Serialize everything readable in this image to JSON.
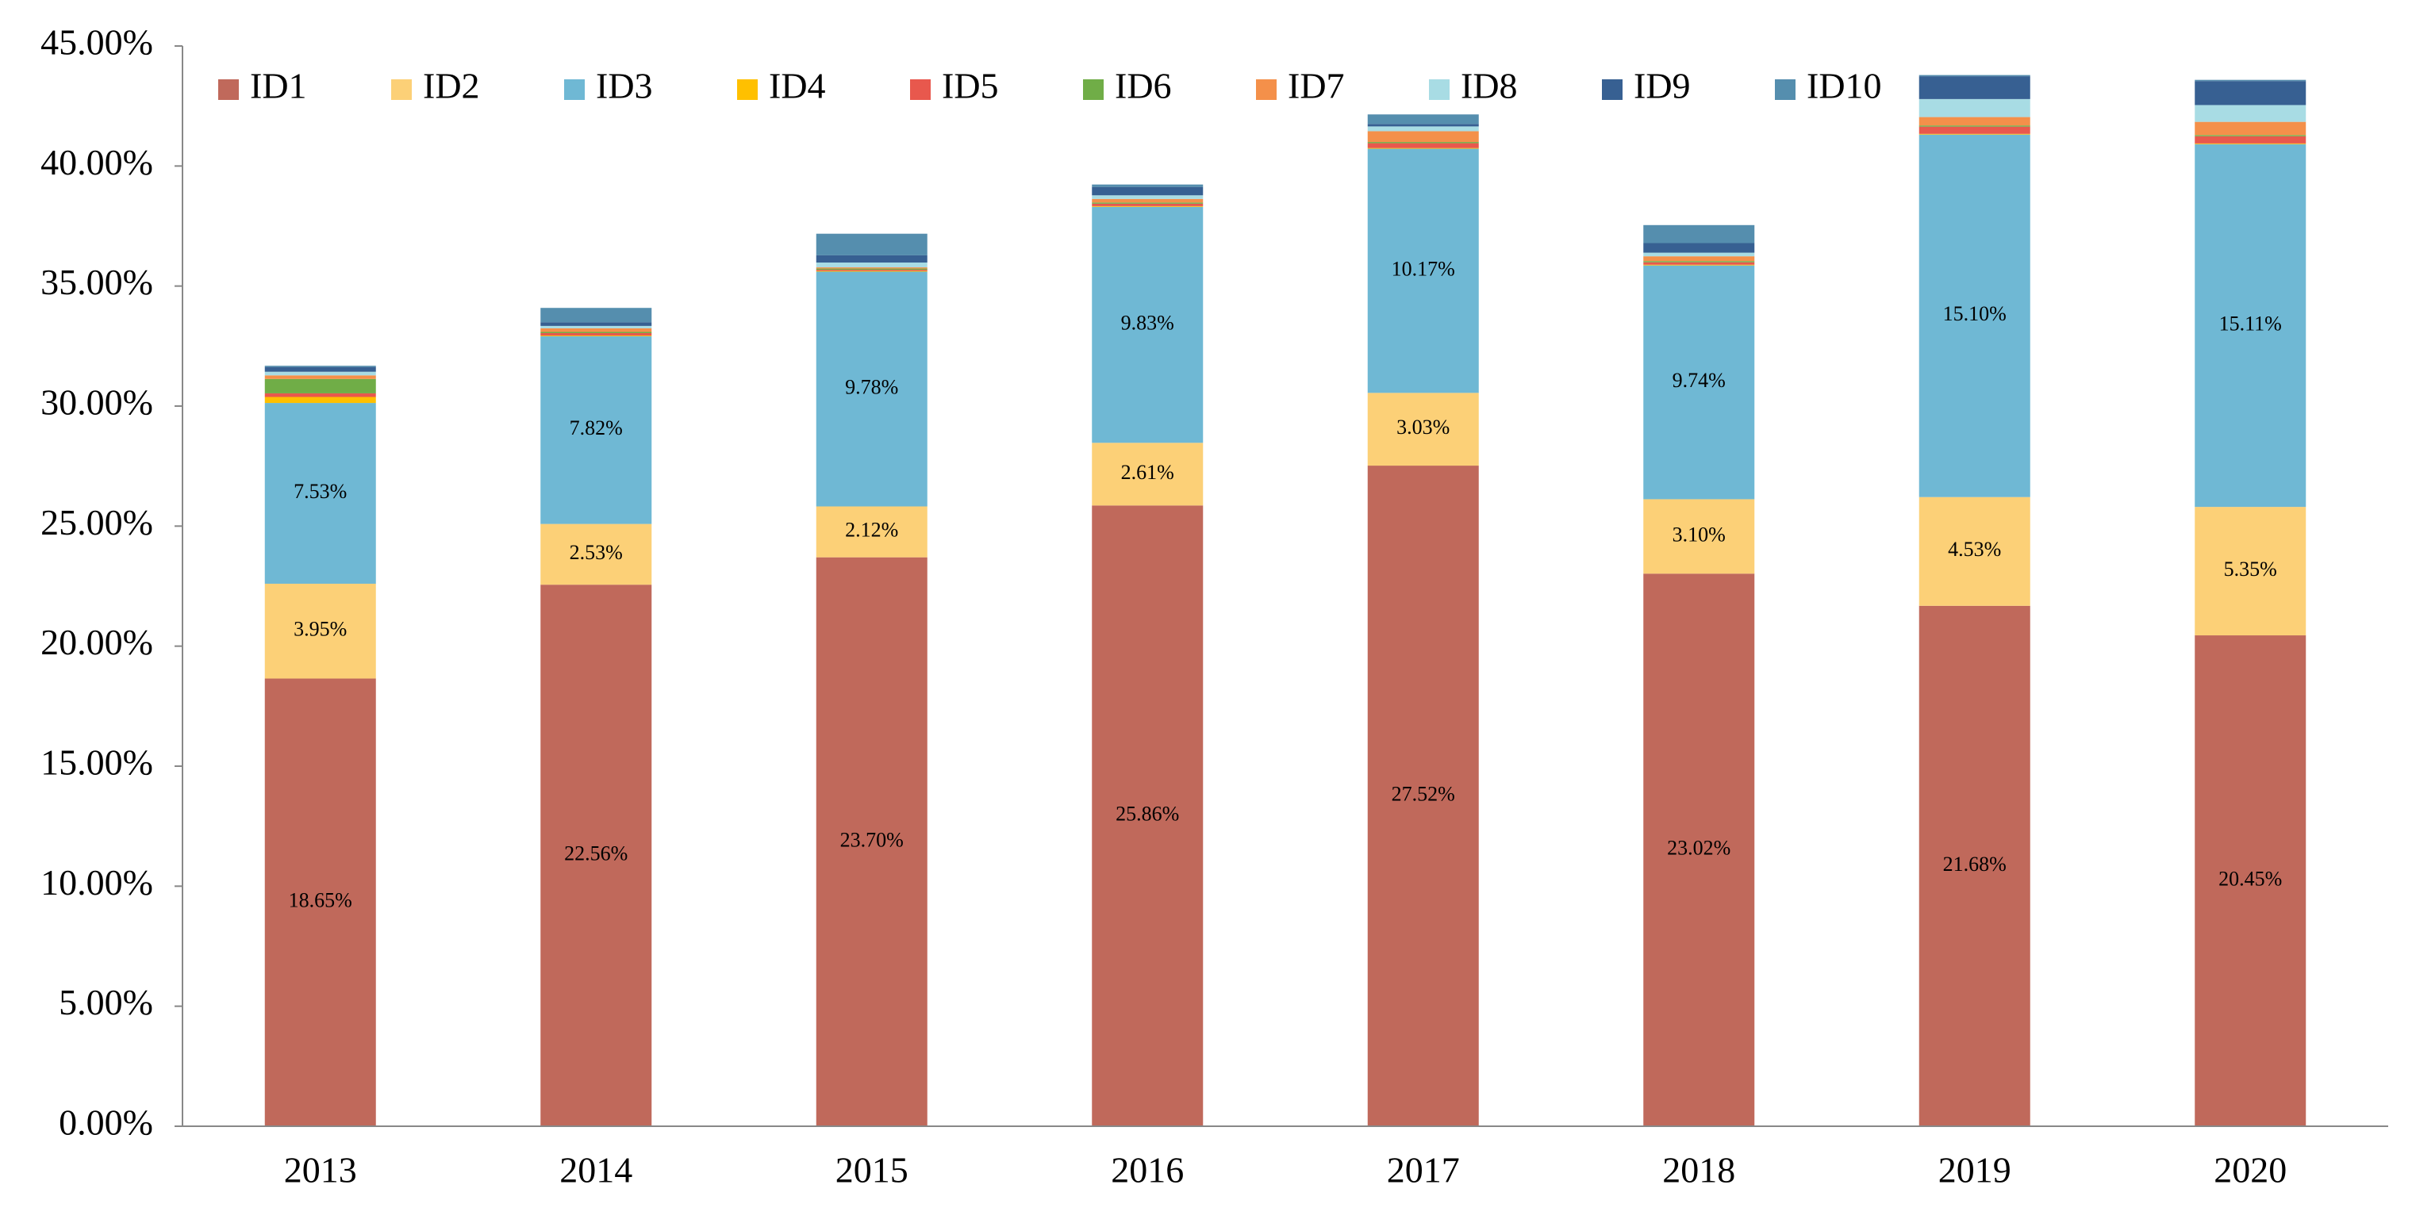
{
  "chart_data": {
    "type": "bar",
    "stacked": true,
    "title": "",
    "xlabel": "",
    "ylabel": "",
    "ylim": [
      0,
      45
    ],
    "y_ticks": [
      0,
      5,
      10,
      15,
      20,
      25,
      30,
      35,
      40,
      45
    ],
    "y_tick_labels": [
      "0.00%",
      "5.00%",
      "10.00%",
      "15.00%",
      "20.00%",
      "25.00%",
      "30.00%",
      "35.00%",
      "40.00%",
      "45.00%"
    ],
    "grid": false,
    "legend_position": "top",
    "categories": [
      "2013",
      "2014",
      "2015",
      "2016",
      "2017",
      "2018",
      "2019",
      "2020"
    ],
    "series": [
      {
        "name": "ID1",
        "color": "#C0695B",
        "values": [
          18.65,
          22.56,
          23.7,
          25.86,
          27.52,
          23.02,
          21.68,
          20.45
        ],
        "labels": [
          "18.65%",
          "22.56%",
          "23.70%",
          "25.86%",
          "27.52%",
          "23.02%",
          "21.68%",
          "20.45%"
        ]
      },
      {
        "name": "ID2",
        "color": "#FCD077",
        "values": [
          3.95,
          2.53,
          2.12,
          2.61,
          3.03,
          3.1,
          4.53,
          5.35
        ],
        "labels": [
          "3.95%",
          "2.53%",
          "2.12%",
          "2.61%",
          "3.03%",
          "3.10%",
          "4.53%",
          "5.35%"
        ]
      },
      {
        "name": "ID3",
        "color": "#6FB8D4",
        "values": [
          7.53,
          7.82,
          9.78,
          9.83,
          10.17,
          9.74,
          15.1,
          15.11
        ],
        "labels": [
          "7.53%",
          "7.82%",
          "9.78%",
          "9.83%",
          "10.17%",
          "9.74%",
          "15.10%",
          "15.11%"
        ]
      },
      {
        "name": "ID4",
        "color": "#FFC000",
        "values": [
          0.25,
          0.03,
          0.03,
          0.03,
          0.03,
          0.03,
          0.03,
          0.03
        ]
      },
      {
        "name": "ID5",
        "color": "#E8584D",
        "values": [
          0.15,
          0.1,
          0.05,
          0.1,
          0.2,
          0.1,
          0.3,
          0.3
        ]
      },
      {
        "name": "ID6",
        "color": "#70AD47",
        "values": [
          0.6,
          0.05,
          0.05,
          0.05,
          0.05,
          0.05,
          0.05,
          0.05
        ]
      },
      {
        "name": "ID7",
        "color": "#F4904A",
        "values": [
          0.15,
          0.15,
          0.05,
          0.15,
          0.45,
          0.2,
          0.35,
          0.55
        ]
      },
      {
        "name": "ID8",
        "color": "#A8DCE4",
        "values": [
          0.15,
          0.1,
          0.2,
          0.15,
          0.2,
          0.15,
          0.75,
          0.7
        ]
      },
      {
        "name": "ID9",
        "color": "#376092",
        "values": [
          0.2,
          0.15,
          0.3,
          0.35,
          0.1,
          0.4,
          0.95,
          1.0
        ]
      },
      {
        "name": "ID10",
        "color": "#558EAE",
        "values": [
          0.05,
          0.6,
          0.9,
          0.1,
          0.4,
          0.75,
          0.05,
          0.05
        ]
      }
    ]
  }
}
